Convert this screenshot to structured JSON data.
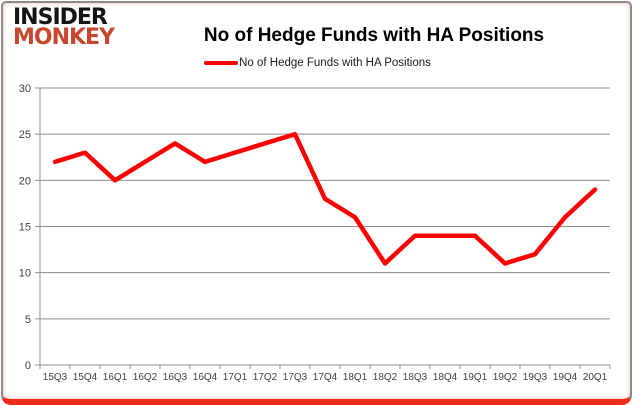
{
  "brand": {
    "line1": "INSIDER",
    "line2": "MONKEY"
  },
  "header": {
    "title": "No of Hedge Funds with HA Positions"
  },
  "legend": {
    "label": "No of Hedge Funds with HA Positions"
  },
  "chart_data": {
    "type": "line",
    "title": "No of Hedge Funds with HA Positions",
    "categories": [
      "15Q3",
      "15Q4",
      "16Q1",
      "16Q2",
      "16Q3",
      "16Q4",
      "17Q1",
      "17Q2",
      "17Q3",
      "17Q4",
      "18Q1",
      "18Q2",
      "18Q3",
      "18Q4",
      "19Q1",
      "19Q2",
      "19Q3",
      "19Q4",
      "20Q1"
    ],
    "series": [
      {
        "name": "No of Hedge Funds with HA Positions",
        "values": [
          22,
          23,
          20,
          22,
          24,
          22,
          23,
          24,
          25,
          18,
          16,
          11,
          14,
          14,
          14,
          11,
          12,
          16,
          19
        ]
      }
    ],
    "xlabel": "",
    "ylabel": "",
    "ylim": [
      0,
      30
    ],
    "yticks": [
      0,
      5,
      10,
      15,
      20,
      25,
      30
    ],
    "grid": true,
    "legend_position": "top-center"
  },
  "colors": {
    "series_line": "#ff0000",
    "logo_red": "#c8472f",
    "grid_gray": "#8c8c8c",
    "axis_text": "#3f3f3f",
    "frame_border": "#8a8a8a",
    "frame_bottom_red": "#ee2c1c"
  }
}
